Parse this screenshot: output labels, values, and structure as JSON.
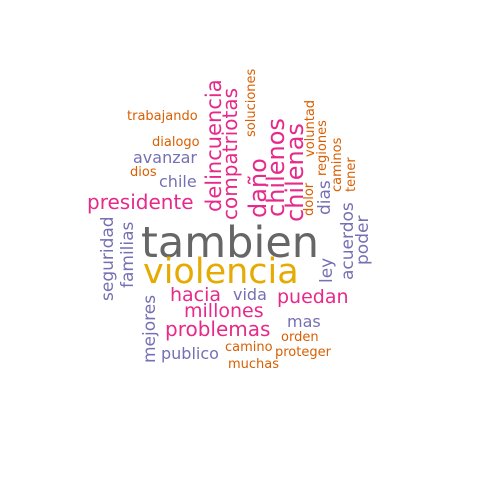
{
  "palette": {
    "gray": "#666666",
    "gold": "#E6AB02",
    "pink": "#E7298A",
    "purple": "#7570B3",
    "orange": "#D95F02"
  },
  "words": {
    "tambien": "tambien",
    "violencia": "violencia",
    "presidente": "presidente",
    "hacia": "hacia",
    "puedan": "puedan",
    "millones": "millones",
    "problemas": "problemas",
    "delincuencia": "delincuencia",
    "compatriotas": "compatriotas",
    "dano": "daño",
    "chilenos": "chilenos",
    "chilenas": "chilenas",
    "avanzar": "avanzar",
    "chile": "chile",
    "seguridad": "seguridad",
    "familias": "familias",
    "mejores": "mejores",
    "publico": "publico",
    "vida": "vida",
    "mas": "mas",
    "ley": "ley",
    "dias": "dias",
    "acuerdos": "acuerdos",
    "poder": "poder",
    "trabajando": "trabajando",
    "dialogo": "dialogo",
    "dios": "dios",
    "soluciones": "soluciones",
    "voluntad": "voluntad",
    "regiones": "regiones",
    "caminos": "caminos",
    "tener": "tener",
    "dolor": "dolor",
    "orden": "orden",
    "camino": "camino",
    "proteger": "proteger",
    "muchas": "muchas"
  }
}
